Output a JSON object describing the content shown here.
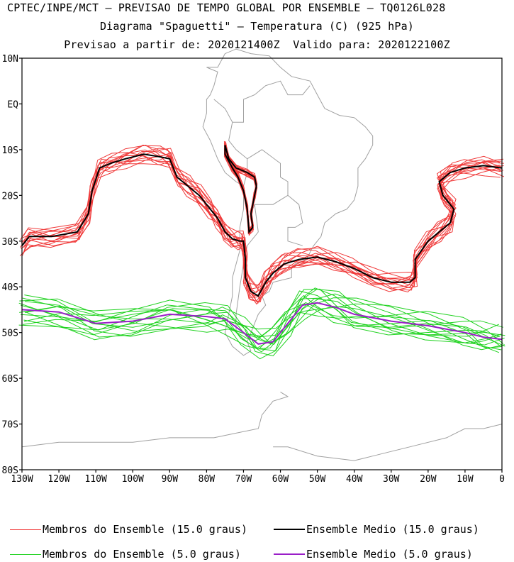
{
  "header": {
    "line1": "CPTEC/INPE/MCT — PREVISAO DE TEMPO GLOBAL POR ENSEMBLE — TQ0126L028",
    "line2": "Diagrama \"Spaguetti\" — Temperatura (C) (925 hPa)",
    "line3": "Previsao a partir de: 2020121400Z  Valido para: 2020122100Z"
  },
  "chart_data": {
    "type": "line",
    "title": "Diagrama \"Spaguetti\" — Temperatura (C) (925 hPa)",
    "xlabel": "",
    "ylabel": "",
    "xlim": [
      -130,
      0
    ],
    "ylim": [
      -80,
      10
    ],
    "x_ticks": [
      "130W",
      "120W",
      "110W",
      "100W",
      "90W",
      "80W",
      "70W",
      "60W",
      "50W",
      "40W",
      "30W",
      "20W",
      "10W",
      "0"
    ],
    "y_ticks": [
      "10N",
      "EQ",
      "10S",
      "20S",
      "30S",
      "40S",
      "50S",
      "60S",
      "70S",
      "80S"
    ],
    "grid": false,
    "background_map": "South America and Antarctica coastlines and borders",
    "colors": {
      "members_15": "#f03a3a",
      "mean_15": "#000000",
      "members_5": "#1ed21e",
      "mean_5": "#9a1ec8",
      "map": "#a0a0a0"
    },
    "series": [
      {
        "name": "Ensemble Medio (15.0 graus)",
        "color": "#000000",
        "points": [
          [
            -130,
            -31
          ],
          [
            -128,
            -29
          ],
          [
            -122,
            -29
          ],
          [
            -115,
            -28
          ],
          [
            -112,
            -24
          ],
          [
            -111,
            -19
          ],
          [
            -109,
            -14
          ],
          [
            -106,
            -13
          ],
          [
            -102,
            -12
          ],
          [
            -97,
            -11
          ],
          [
            -93,
            -11.5
          ],
          [
            -90,
            -12
          ],
          [
            -88,
            -16
          ],
          [
            -85,
            -18
          ],
          [
            -82,
            -20
          ],
          [
            -79,
            -23
          ],
          [
            -77,
            -25
          ],
          [
            -75,
            -28
          ],
          [
            -73,
            -29.5
          ],
          [
            -71,
            -30
          ],
          [
            -70,
            -30
          ],
          [
            -69.5,
            -34
          ],
          [
            -69.5,
            -38
          ],
          [
            -68,
            -41
          ],
          [
            -66,
            -42
          ],
          [
            -64,
            -39
          ],
          [
            -62,
            -37
          ],
          [
            -59,
            -35
          ],
          [
            -55,
            -34
          ],
          [
            -50,
            -33.5
          ],
          [
            -45,
            -34.5
          ],
          [
            -40,
            -36
          ],
          [
            -35,
            -38
          ],
          [
            -30,
            -39
          ],
          [
            -25,
            -39
          ],
          [
            -23.5,
            -38
          ],
          [
            -23.5,
            -34
          ],
          [
            -20,
            -30
          ],
          [
            -17,
            -28
          ],
          [
            -14,
            -26
          ],
          [
            -13,
            -23
          ],
          [
            -16,
            -20
          ],
          [
            -17,
            -17
          ],
          [
            -14,
            -15
          ],
          [
            -10,
            -14
          ],
          [
            -5,
            -13.5
          ],
          [
            0,
            -14
          ]
        ]
      },
      {
        "name": "Ensemble Medio (15.0 graus) Andes",
        "color": "#000000",
        "points": [
          [
            -75,
            -9
          ],
          [
            -74,
            -12
          ],
          [
            -72,
            -14
          ],
          [
            -69,
            -15
          ],
          [
            -67,
            -16
          ],
          [
            -66.5,
            -18
          ],
          [
            -67,
            -20
          ],
          [
            -68,
            -24
          ],
          [
            -67.5,
            -27
          ],
          [
            -68.5,
            -28
          ],
          [
            -69,
            -23
          ],
          [
            -70,
            -19
          ],
          [
            -71.5,
            -16
          ],
          [
            -73,
            -14
          ],
          [
            -75,
            -11
          ],
          [
            -75,
            -9
          ]
        ]
      },
      {
        "name": "Ensemble Medio (5.0 graus)",
        "color": "#9a1ec8",
        "points": [
          [
            -130,
            -45
          ],
          [
            -120,
            -45.5
          ],
          [
            -110,
            -48
          ],
          [
            -100,
            -47.5
          ],
          [
            -90,
            -46
          ],
          [
            -80,
            -46.5
          ],
          [
            -75,
            -47
          ],
          [
            -70,
            -50
          ],
          [
            -66,
            -52.5
          ],
          [
            -62,
            -52
          ],
          [
            -58,
            -48
          ],
          [
            -54,
            -44
          ],
          [
            -50,
            -43.5
          ],
          [
            -45,
            -44.5
          ],
          [
            -40,
            -46
          ],
          [
            -30,
            -47.5
          ],
          [
            -20,
            -48.5
          ],
          [
            -10,
            -50
          ],
          [
            -5,
            -51
          ],
          [
            0,
            -51.5
          ]
        ]
      }
    ],
    "legend": [
      {
        "label": "Membros do Ensemble (15.0 graus)",
        "color": "#f03a3a"
      },
      {
        "label": "Ensemble Medio (15.0 graus)",
        "color": "#000000"
      },
      {
        "label": "Membros do Ensemble (5.0 graus)",
        "color": "#1ed21e"
      },
      {
        "label": "Ensemble Medio (5.0 graus)",
        "color": "#9a1ec8"
      }
    ],
    "legend_placement": "bottom"
  }
}
